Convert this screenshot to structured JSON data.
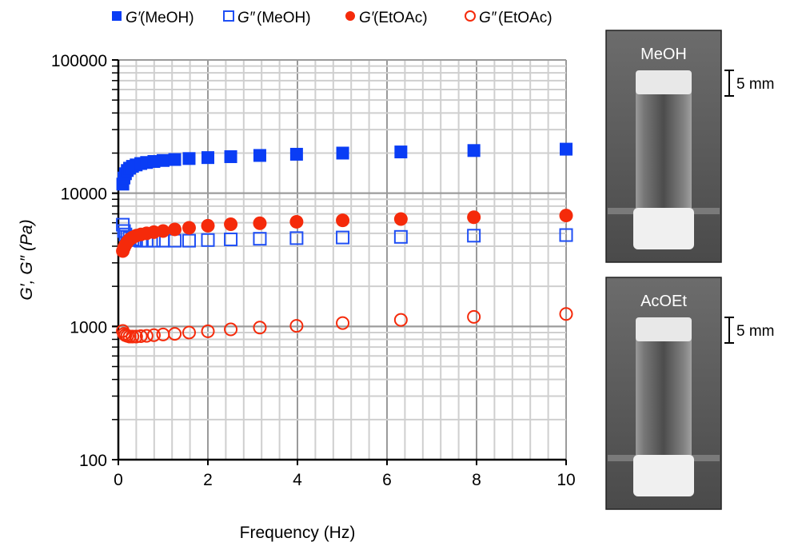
{
  "chart_data": {
    "type": "scatter",
    "xlabel": "Frequency (Hz)",
    "ylabel": "G′, G″ (Pa)",
    "xlim": [
      0,
      10
    ],
    "ylim": [
      100,
      100000
    ],
    "yscale": "log",
    "grid": true,
    "legend_position": "top",
    "x_ticks": [
      "0",
      "2",
      "4",
      "6",
      "8",
      "10"
    ],
    "y_ticks": [
      "100",
      "1000",
      "10000",
      "100000"
    ],
    "x": [
      0.1,
      0.126,
      0.158,
      0.2,
      0.251,
      0.316,
      0.398,
      0.501,
      0.631,
      0.794,
      1.0,
      1.26,
      1.58,
      2.0,
      2.51,
      3.16,
      3.98,
      5.01,
      6.31,
      7.94,
      10.0
    ],
    "series": [
      {
        "name": "G′ (MeOH)",
        "symbol": "G′",
        "solvent": "(MeOH)",
        "marker": "square-filled",
        "color": "#0a3df5",
        "values": [
          11700,
          13000,
          14000,
          14800,
          15400,
          15900,
          16300,
          16700,
          17000,
          17300,
          17600,
          17900,
          18200,
          18500,
          18800,
          19200,
          19600,
          20000,
          20400,
          20900,
          21400
        ]
      },
      {
        "name": "G″ (MeOH)",
        "symbol": "G″",
        "solvent": "(MeOH)",
        "marker": "square-open",
        "color": "#1f4ff5",
        "values": [
          5800,
          5200,
          4900,
          4700,
          4600,
          4500,
          4450,
          4400,
          4400,
          4400,
          4400,
          4400,
          4400,
          4450,
          4500,
          4550,
          4600,
          4650,
          4700,
          4800,
          4850
        ]
      },
      {
        "name": "G′ (EtOAc)",
        "symbol": "G′",
        "solvent": "(EtOAc)",
        "marker": "circle-filled",
        "color": "#f52a0a",
        "values": [
          3680,
          3900,
          4100,
          4300,
          4500,
          4650,
          4800,
          4900,
          5000,
          5100,
          5200,
          5350,
          5500,
          5700,
          5850,
          5950,
          6100,
          6250,
          6400,
          6600,
          6800
        ]
      },
      {
        "name": "G″ (EtOAc)",
        "symbol": "G″",
        "solvent": "(EtOAc)",
        "marker": "circle-open",
        "color": "#f52a0a",
        "values": [
          925,
          880,
          860,
          850,
          840,
          840,
          840,
          845,
          850,
          860,
          870,
          880,
          900,
          920,
          950,
          980,
          1010,
          1060,
          1120,
          1180,
          1240
        ]
      }
    ]
  },
  "photos": [
    {
      "label": "MeOH",
      "scale_bar": "5 mm"
    },
    {
      "label": "AcOEt",
      "scale_bar": "5 mm"
    }
  ]
}
